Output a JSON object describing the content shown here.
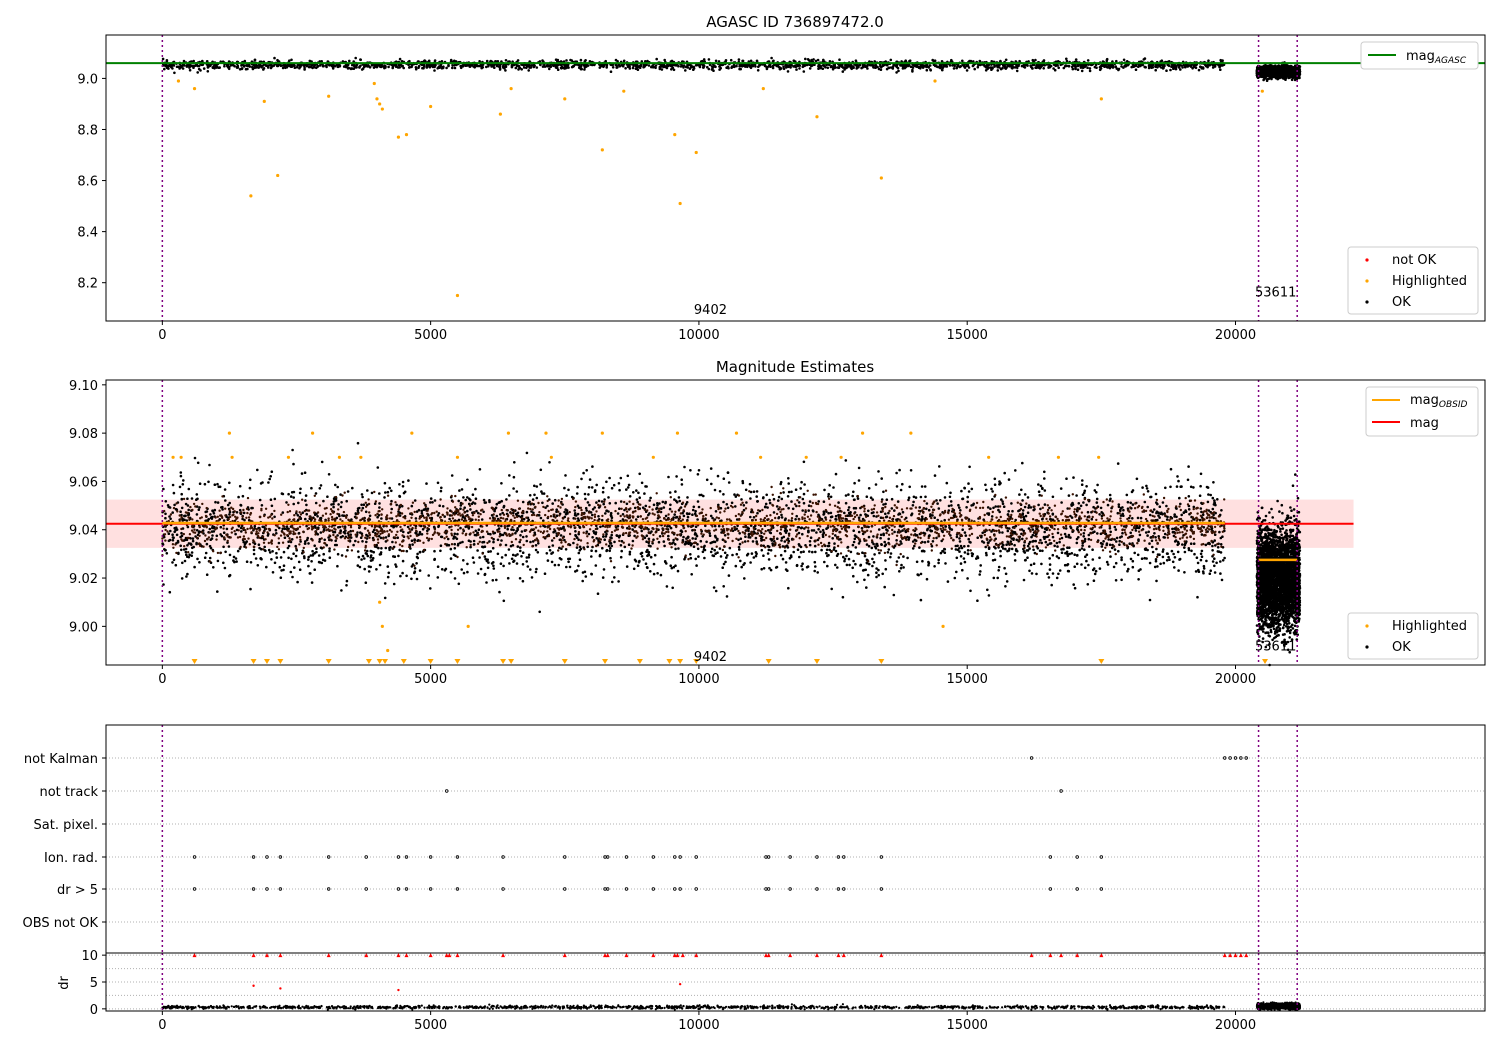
{
  "chart_data": [
    {
      "type": "scatter",
      "title": "AGASC ID 736897472.0",
      "xlabel": "",
      "ylabel": "",
      "xlim": [
        -1050,
        24650
      ],
      "ylim": [
        8.05,
        9.17
      ],
      "x_ticks": [
        0,
        5000,
        10000,
        15000,
        20000
      ],
      "y_ticks": [
        8.2,
        8.4,
        8.6,
        8.8,
        9.0
      ],
      "series": [
        {
          "name": "not OK",
          "color": "#ff0000",
          "points": []
        },
        {
          "name": "Highlighted",
          "color": "#ffa500",
          "points": [
            [
              300,
              8.99
            ],
            [
              600,
              8.96
            ],
            [
              1650,
              8.54
            ],
            [
              1900,
              8.91
            ],
            [
              2150,
              8.62
            ],
            [
              3100,
              8.93
            ],
            [
              3950,
              8.98
            ],
            [
              4000,
              8.92
            ],
            [
              4050,
              8.9
            ],
            [
              4100,
              8.88
            ],
            [
              4400,
              8.77
            ],
            [
              4550,
              8.78
            ],
            [
              5000,
              8.89
            ],
            [
              5500,
              8.15
            ],
            [
              6300,
              8.86
            ],
            [
              6500,
              8.96
            ],
            [
              7500,
              8.92
            ],
            [
              8200,
              8.72
            ],
            [
              8600,
              8.95
            ],
            [
              9550,
              8.78
            ],
            [
              9650,
              8.51
            ],
            [
              9950,
              8.71
            ],
            [
              11200,
              8.96
            ],
            [
              12200,
              8.85
            ],
            [
              13400,
              8.61
            ],
            [
              14400,
              8.99
            ],
            [
              17500,
              8.92
            ],
            [
              20500,
              8.95
            ]
          ]
        },
        {
          "name": "OK",
          "color": "#000000",
          "bands": [
            {
              "x": [
                0,
                19800
              ],
              "y": [
                9.035,
                9.07
              ]
            },
            {
              "x": [
                20400,
                21200
              ],
              "y": [
                9.005,
                9.045
              ]
            }
          ]
        }
      ],
      "reference_lines": [
        {
          "name": "mag_AGASC",
          "y": 9.06,
          "color": "#008000"
        }
      ],
      "vlines": [
        0,
        20430,
        21150
      ],
      "annotations": [
        {
          "text": "9402",
          "x": 10000,
          "y": 8.1
        },
        {
          "text": "53611",
          "x": 20420,
          "y": 8.17
        }
      ],
      "legend": [
        {
          "label": "mag",
          "sub": "AGASC",
          "kind": "line",
          "color": "#008000",
          "position": "upper right"
        },
        {
          "label": "not OK",
          "kind": "marker",
          "color": "#ff0000",
          "position": "lower right"
        },
        {
          "label": "Highlighted",
          "kind": "marker",
          "color": "#ffa500",
          "position": "lower right"
        },
        {
          "label": "OK",
          "kind": "marker",
          "color": "#000000",
          "position": "lower right"
        }
      ]
    },
    {
      "type": "scatter",
      "title": "Magnitude Estimates",
      "xlabel": "",
      "ylabel": "",
      "xlim": [
        -1050,
        24650
      ],
      "ylim": [
        8.984,
        9.102
      ],
      "x_ticks": [
        0,
        5000,
        10000,
        15000,
        20000
      ],
      "y_ticks": [
        9.0,
        9.02,
        9.04,
        9.06,
        9.08,
        9.1
      ],
      "series": [
        {
          "name": "Highlighted",
          "color": "#ffa500",
          "points": [
            [
              200,
              9.07
            ],
            [
              350,
              9.07
            ],
            [
              1250,
              9.08
            ],
            [
              1300,
              9.07
            ],
            [
              2350,
              9.07
            ],
            [
              2800,
              9.08
            ],
            [
              3300,
              9.07
            ],
            [
              3700,
              9.07
            ],
            [
              4050,
              9.01
            ],
            [
              4100,
              9.0
            ],
            [
              4200,
              8.99
            ],
            [
              4650,
              9.08
            ],
            [
              5500,
              9.07
            ],
            [
              5700,
              9.0
            ],
            [
              6450,
              9.08
            ],
            [
              7150,
              9.08
            ],
            [
              7250,
              9.07
            ],
            [
              8200,
              9.08
            ],
            [
              9150,
              9.07
            ],
            [
              9600,
              9.08
            ],
            [
              10700,
              9.08
            ],
            [
              11150,
              9.07
            ],
            [
              12000,
              9.07
            ],
            [
              12650,
              9.07
            ],
            [
              13050,
              9.08
            ],
            [
              13950,
              9.08
            ],
            [
              14550,
              9.0
            ],
            [
              15400,
              9.07
            ],
            [
              16700,
              9.07
            ],
            [
              17450,
              9.07
            ]
          ]
        },
        {
          "name": "Highlighted (off-scale)",
          "color": "#ffa500",
          "points": [
            [
              600,
              8.984
            ],
            [
              1700,
              8.984
            ],
            [
              1950,
              8.984
            ],
            [
              2200,
              8.984
            ],
            [
              3100,
              8.984
            ],
            [
              3850,
              8.984
            ],
            [
              4050,
              8.984
            ],
            [
              4150,
              8.984
            ],
            [
              4500,
              8.984
            ],
            [
              5000,
              8.984
            ],
            [
              5500,
              8.984
            ],
            [
              6350,
              8.984
            ],
            [
              6500,
              8.984
            ],
            [
              7500,
              8.984
            ],
            [
              8250,
              8.984
            ],
            [
              8900,
              8.984
            ],
            [
              9450,
              8.984
            ],
            [
              9650,
              8.984
            ],
            [
              9950,
              8.984
            ],
            [
              11300,
              8.984
            ],
            [
              12200,
              8.984
            ],
            [
              13400,
              8.984
            ],
            [
              17500,
              8.984
            ],
            [
              20550,
              8.984
            ]
          ]
        },
        {
          "name": "OK",
          "color": "#000000",
          "bands": [
            {
              "x": [
                0,
                19800
              ],
              "y": [
                9.02,
                9.06
              ]
            },
            {
              "x": [
                20400,
                21200
              ],
              "y": [
                9.0,
                9.04
              ]
            }
          ]
        }
      ],
      "reference_lines": [
        {
          "name": "mag",
          "y": 9.0425,
          "color": "#ff0000",
          "x": [
            -1050,
            22200
          ],
          "band": [
            9.0325,
            9.0525
          ]
        },
        {
          "name": "mag_OBSID",
          "color": "#ffa500",
          "segments": [
            {
              "x": [
                0,
                19800
              ],
              "y": 9.0428
            },
            {
              "x": [
                20430,
                21150
              ],
              "y": 9.0275
            }
          ]
        }
      ],
      "vlines": [
        0,
        20430,
        21150
      ],
      "annotations": [
        {
          "text": "9402",
          "x": 10000,
          "y": 8.9865
        },
        {
          "text": "53611",
          "x": 20420,
          "y": 8.995
        }
      ],
      "legend": [
        {
          "label": "mag",
          "sub": "OBSID",
          "kind": "line",
          "color": "#ffa500",
          "position": "upper right"
        },
        {
          "label": "mag",
          "kind": "line",
          "color": "#ff0000",
          "position": "upper right"
        },
        {
          "label": "Highlighted",
          "kind": "marker",
          "color": "#ffa500",
          "position": "lower right"
        },
        {
          "label": "OK",
          "kind": "marker",
          "color": "#000000",
          "position": "lower right"
        }
      ]
    },
    {
      "type": "scatter",
      "title": "",
      "xlabel": "",
      "ylabel": "",
      "xlim": [
        -1050,
        24650
      ],
      "categories": [
        "not Kalman",
        "not track",
        "Sat. pixel.",
        "Ion. rad.",
        "dr > 5",
        "OBS not OK"
      ],
      "flags": {
        "not Kalman": [
          16200,
          19800,
          19900,
          20000,
          20100,
          20200
        ],
        "not track": [
          5300,
          16750
        ],
        "Sat. pixel.": [],
        "Ion. rad.": [
          600,
          1700,
          1950,
          2200,
          3100,
          3800,
          4400,
          4550,
          5000,
          5500,
          6350,
          7500,
          8250,
          8300,
          8650,
          9150,
          9550,
          9650,
          9950,
          11250,
          11300,
          11700,
          12200,
          12600,
          12700,
          13400,
          16550,
          17050,
          17500
        ],
        "dr > 5": [
          600,
          1700,
          1950,
          2200,
          3100,
          3800,
          4400,
          4550,
          5000,
          5500,
          6350,
          7500,
          8250,
          8300,
          8650,
          9150,
          9550,
          9650,
          9950,
          11250,
          11300,
          11700,
          12200,
          12600,
          12700,
          13400,
          16550,
          17050,
          17500
        ],
        "OBS not OK": []
      }
    },
    {
      "type": "scatter",
      "title": "",
      "xlabel": "",
      "ylabel": "dr",
      "xlim": [
        -1050,
        24650
      ],
      "ylim": [
        -0.4,
        10.4
      ],
      "y_ticks": [
        0,
        5,
        10
      ],
      "x_ticks": [
        0,
        5000,
        10000,
        15000,
        20000
      ],
      "series": [
        {
          "name": "dr clipped",
          "color": "#ff0000",
          "x": [
            600,
            1700,
            1950,
            2200,
            3100,
            3800,
            4400,
            4550,
            5000,
            5300,
            5350,
            5500,
            6350,
            7500,
            8250,
            8300,
            8650,
            9150,
            9550,
            9600,
            9700,
            9950,
            11250,
            11300,
            11700,
            12200,
            12600,
            12700,
            13400,
            16200,
            16550,
            16750,
            17050,
            17500,
            19800,
            19900,
            20000,
            20100,
            20200
          ],
          "y": 10
        },
        {
          "name": "dr outliers",
          "color": "#ff0000",
          "points": [
            [
              1700,
              4.3
            ],
            [
              2200,
              3.8
            ],
            [
              4400,
              3.5
            ],
            [
              9650,
              4.6
            ]
          ]
        },
        {
          "name": "dr",
          "color": "#000000",
          "bands": [
            {
              "x": [
                0,
                19800
              ],
              "y": [
                0,
                0.6
              ]
            },
            {
              "x": [
                20400,
                21200
              ],
              "y": [
                0,
                1.0
              ]
            }
          ]
        }
      ],
      "vlines": [
        0,
        20430,
        21150
      ]
    }
  ]
}
